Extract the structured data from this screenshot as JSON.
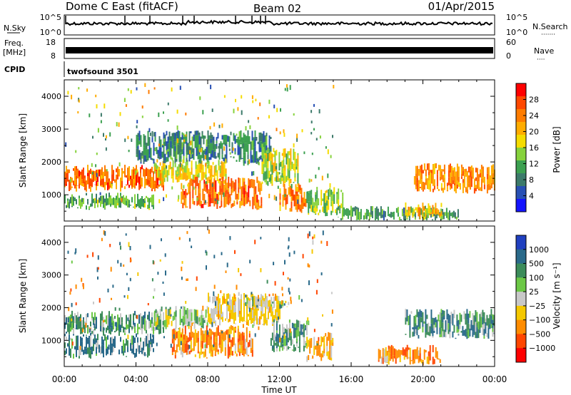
{
  "header": {
    "station": "Dome C East (fitACF)",
    "beam": "Beam 02",
    "date": "01/Apr/2015"
  },
  "panels": {
    "nsky": {
      "left_label": "N.Sky",
      "right_label": "N.Search",
      "right_dots": "·······",
      "left_ticks": [
        "10^5",
        "10^0"
      ],
      "right_ticks": [
        "10^5",
        "10^0"
      ]
    },
    "freq": {
      "left_label_1": "Freq.",
      "left_label_2": "[MHz]",
      "right_label": "Nave",
      "right_dots": "····",
      "left_ticks": [
        "18",
        "8"
      ],
      "right_ticks": [
        "60",
        "0"
      ]
    },
    "cpid": {
      "label": "CPID",
      "value": "twofsound 3501"
    }
  },
  "colorbars": {
    "power": {
      "label": "Power [dB]",
      "ticks": [
        "28",
        "24",
        "20",
        "16",
        "12",
        "8",
        "4"
      ],
      "colors": [
        "#ff0000",
        "#ff4800",
        "#ff7c00",
        "#ffac00",
        "#f5dc00",
        "#86d23c",
        "#3ca050",
        "#3c7a6a",
        "#2850b4",
        "#1414ff"
      ]
    },
    "velocity": {
      "label": "Velocity [m s⁻¹]",
      "ticks": [
        "1000",
        "500",
        "100",
        "25",
        "−25",
        "−100",
        "−500",
        "−1000"
      ],
      "colors": [
        "#2040c0",
        "#2a6a8a",
        "#3c8c5a",
        "#6cc846",
        "#c8c8c8",
        "#f5c800",
        "#ff8c00",
        "#ff4600",
        "#ff0000"
      ]
    }
  },
  "chart_data": [
    {
      "type": "heatmap",
      "title": "Power",
      "xlabel": "Time UT",
      "ylabel": "Slant Range [km]",
      "x_ticks": [
        "00:00",
        "04:00",
        "08:00",
        "12:00",
        "16:00",
        "20:00",
        "00:00"
      ],
      "y_ticks": [
        "1000",
        "2000",
        "3000",
        "4000"
      ],
      "xlim": [
        0,
        24
      ],
      "ylim": [
        200,
        4500
      ],
      "zlabel": "Power [dB]",
      "zlim": [
        0,
        32
      ],
      "bands": [
        {
          "t0": 0.0,
          "t1": 5.5,
          "r0": 1150,
          "r1": 1850,
          "z": 26
        },
        {
          "t0": 0.0,
          "t1": 5.0,
          "r0": 600,
          "r1": 1000,
          "z": 12
        },
        {
          "t0": 5.0,
          "t1": 9.0,
          "r0": 1400,
          "r1": 2000,
          "z": 18
        },
        {
          "t0": 6.5,
          "t1": 11.0,
          "r0": 600,
          "r1": 1500,
          "z": 26
        },
        {
          "t0": 4.0,
          "t1": 11.5,
          "r0": 2000,
          "r1": 2900,
          "z": 8
        },
        {
          "t0": 11.0,
          "t1": 13.0,
          "r0": 1300,
          "r1": 2400,
          "z": 16
        },
        {
          "t0": 12.0,
          "t1": 13.5,
          "r0": 500,
          "r1": 1300,
          "z": 24
        },
        {
          "t0": 13.5,
          "t1": 15.5,
          "r0": 400,
          "r1": 1200,
          "z": 14
        },
        {
          "t0": 15.0,
          "t1": 22.0,
          "r0": 250,
          "r1": 600,
          "z": 10
        },
        {
          "t0": 19.5,
          "t1": 24.0,
          "r0": 1100,
          "r1": 1900,
          "z": 24
        },
        {
          "t0": 19.0,
          "t1": 21.0,
          "r0": 300,
          "r1": 700,
          "z": 20
        }
      ]
    },
    {
      "type": "heatmap",
      "title": "Velocity",
      "xlabel": "Time UT",
      "ylabel": "Slant Range [km]",
      "x_ticks": [
        "00:00",
        "04:00",
        "08:00",
        "12:00",
        "16:00",
        "20:00",
        "00:00"
      ],
      "y_ticks": [
        "1000",
        "2000",
        "3000",
        "4000"
      ],
      "xlim": [
        0,
        24
      ],
      "ylim": [
        200,
        4500
      ],
      "zlabel": "Velocity [m s⁻¹]",
      "zlim": [
        -1000,
        1000
      ],
      "bands": [
        {
          "t0": 0.0,
          "t1": 5.5,
          "r0": 1200,
          "r1": 1850,
          "z": 60
        },
        {
          "t0": 0.0,
          "t1": 5.0,
          "r0": 500,
          "r1": 1150,
          "z": 150
        },
        {
          "t0": 5.0,
          "t1": 8.0,
          "r0": 1400,
          "r1": 2000,
          "z": 20
        },
        {
          "t0": 6.0,
          "t1": 10.5,
          "r0": 500,
          "r1": 1400,
          "z": -200
        },
        {
          "t0": 8.0,
          "t1": 12.0,
          "r0": 1500,
          "r1": 2400,
          "z": -50
        },
        {
          "t0": 10.0,
          "t1": 12.5,
          "r0": 2000,
          "r1": 2300,
          "z": 10
        },
        {
          "t0": 11.5,
          "t1": 13.5,
          "r0": 700,
          "r1": 1600,
          "z": 60
        },
        {
          "t0": 13.5,
          "t1": 15.0,
          "r0": 400,
          "r1": 1200,
          "z": -150
        },
        {
          "t0": 17.5,
          "t1": 21.0,
          "r0": 300,
          "r1": 800,
          "z": -200
        },
        {
          "t0": 19.0,
          "t1": 24.0,
          "r0": 1100,
          "r1": 1900,
          "z": 80
        }
      ]
    }
  ]
}
